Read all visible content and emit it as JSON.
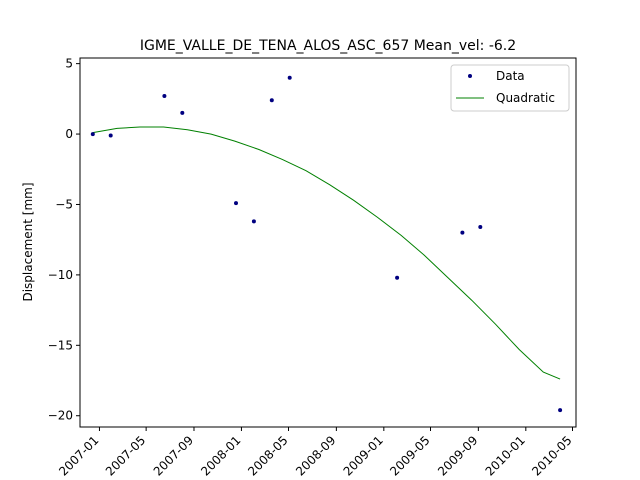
{
  "chart_data": {
    "type": "scatter",
    "title": "IGME_VALLE_DE_TENA_ALOS_ASC_657     Mean_vel: -6.2",
    "xlabel": "",
    "ylabel": "Displacement [mm]",
    "xlim": [
      "2006-11-12",
      "2010-05-10"
    ],
    "ylim": [
      -20.8,
      5.4
    ],
    "x_ticks": [
      "2007-01",
      "2007-05",
      "2007-09",
      "2008-01",
      "2008-05",
      "2008-09",
      "2009-01",
      "2009-05",
      "2009-09",
      "2010-01",
      "2010-05"
    ],
    "y_ticks": [
      5,
      0,
      -5,
      -10,
      -15,
      -20
    ],
    "grid": false,
    "legend_position": "top-right",
    "series": [
      {
        "name": "Data",
        "kind": "points",
        "color": "#000080",
        "points": [
          {
            "x": "2006-12-15",
            "y": 0.0
          },
          {
            "x": "2007-01-30",
            "y": -0.1
          },
          {
            "x": "2007-06-17",
            "y": 2.7
          },
          {
            "x": "2007-08-02",
            "y": 1.5
          },
          {
            "x": "2007-12-18",
            "y": -4.9
          },
          {
            "x": "2008-02-02",
            "y": -6.2
          },
          {
            "x": "2008-03-19",
            "y": 2.4
          },
          {
            "x": "2008-05-04",
            "y": 4.0
          },
          {
            "x": "2009-02-04",
            "y": -10.2
          },
          {
            "x": "2009-07-22",
            "y": -7.0
          },
          {
            "x": "2009-09-06",
            "y": -6.6
          },
          {
            "x": "2010-03-30",
            "y": -19.6
          }
        ]
      },
      {
        "name": "Quadratic",
        "kind": "line",
        "color": "#008000",
        "points": [
          {
            "x": "2006-12-15",
            "y": 0.1
          },
          {
            "x": "2007-02-15",
            "y": 0.4
          },
          {
            "x": "2007-04-15",
            "y": 0.5
          },
          {
            "x": "2007-06-15",
            "y": 0.5
          },
          {
            "x": "2007-08-15",
            "y": 0.3
          },
          {
            "x": "2007-10-15",
            "y": 0.0
          },
          {
            "x": "2007-12-15",
            "y": -0.5
          },
          {
            "x": "2008-02-15",
            "y": -1.1
          },
          {
            "x": "2008-04-15",
            "y": -1.8
          },
          {
            "x": "2008-06-15",
            "y": -2.6
          },
          {
            "x": "2008-08-15",
            "y": -3.6
          },
          {
            "x": "2008-10-15",
            "y": -4.7
          },
          {
            "x": "2008-12-15",
            "y": -5.9
          },
          {
            "x": "2009-02-15",
            "y": -7.2
          },
          {
            "x": "2009-04-15",
            "y": -8.6
          },
          {
            "x": "2009-06-15",
            "y": -10.2
          },
          {
            "x": "2009-08-15",
            "y": -11.8
          },
          {
            "x": "2009-10-15",
            "y": -13.5
          },
          {
            "x": "2009-12-15",
            "y": -15.3
          },
          {
            "x": "2010-02-15",
            "y": -16.9
          },
          {
            "x": "2010-03-30",
            "y": -17.4
          }
        ]
      }
    ]
  }
}
